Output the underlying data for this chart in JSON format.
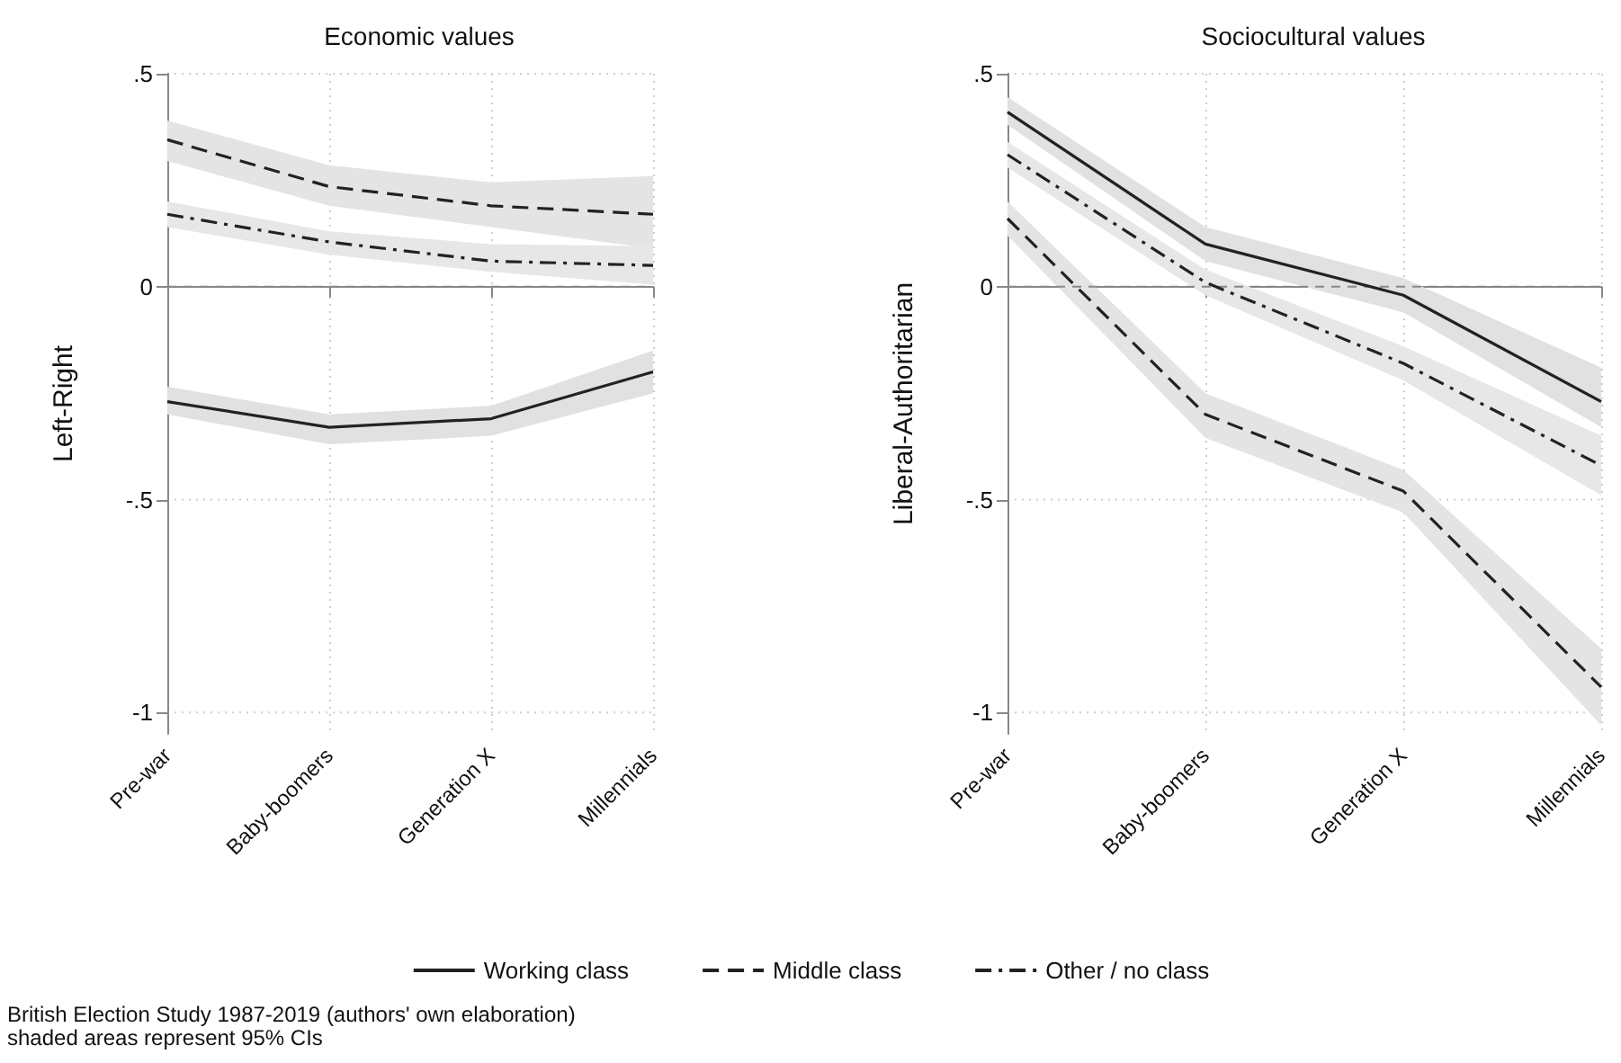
{
  "chart_data": [
    {
      "type": "line",
      "title": "Economic values",
      "ylabel": "Left-Right",
      "categories": [
        "Pre-war",
        "Baby-boomers",
        "Generation X",
        "Millennials"
      ],
      "series": [
        {
          "color": "#222222",
          "line_style": "solid",
          "values": [
            -0.27,
            -0.33,
            -0.31,
            -0.2
          ],
          "lower": [
            -0.3,
            -0.37,
            -0.35,
            -0.25
          ],
          "upper": [
            -0.235,
            -0.3,
            -0.28,
            -0.15
          ]
        },
        {
          "color": "#222222",
          "line_style": "dashed",
          "values": [
            0.345,
            0.235,
            0.19,
            0.17
          ],
          "lower": [
            0.295,
            0.19,
            0.14,
            0.09
          ],
          "upper": [
            0.39,
            0.285,
            0.245,
            0.26
          ]
        },
        {
          "color": "#222222",
          "line_style": "dashdot",
          "values": [
            0.17,
            0.105,
            0.06,
            0.05
          ],
          "lower": [
            0.14,
            0.075,
            0.035,
            0.005
          ],
          "upper": [
            0.2,
            0.13,
            0.1,
            0.095
          ]
        }
      ],
      "ylim": [
        -1.05,
        0.5
      ],
      "yticks": [
        {
          "value": -1,
          "label": "-1"
        },
        {
          "value": -0.5,
          "label": "-.5"
        },
        {
          "value": 0,
          "label": "0"
        },
        {
          "value": 0.5,
          "label": ".5"
        }
      ],
      "grid": true,
      "marker": "none",
      "ref_lines": [
        {
          "axis": "y",
          "value": 0,
          "color": "#888888",
          "line_style": "dashed"
        }
      ]
    },
    {
      "type": "line",
      "title": "Sociocultural values",
      "ylabel": "Liberal-Authoritarian",
      "categories": [
        "Pre-war",
        "Baby-boomers",
        "Generation X",
        "Millennials"
      ],
      "series": [
        {
          "name": "Working class",
          "color": "#222222",
          "line_style": "solid",
          "values": [
            0.41,
            0.1,
            -0.02,
            -0.27
          ],
          "lower": [
            0.38,
            0.06,
            -0.06,
            -0.33
          ],
          "upper": [
            0.445,
            0.14,
            0.02,
            -0.19
          ]
        },
        {
          "name": "Middle class",
          "color": "#222222",
          "line_style": "dashed",
          "values": [
            0.16,
            -0.3,
            -0.48,
            -0.94
          ],
          "lower": [
            0.12,
            -0.355,
            -0.53,
            -1.03
          ],
          "upper": [
            0.2,
            -0.25,
            -0.43,
            -0.85
          ]
        },
        {
          "name": "Other / no class",
          "color": "#222222",
          "line_style": "dashdot",
          "values": [
            0.31,
            0.01,
            -0.18,
            -0.42
          ],
          "lower": [
            0.28,
            -0.02,
            -0.22,
            -0.49
          ],
          "upper": [
            0.34,
            0.04,
            -0.14,
            -0.35
          ]
        }
      ],
      "ylim": [
        -1.05,
        0.5
      ],
      "yticks": [
        {
          "value": -1,
          "label": "-1"
        },
        {
          "value": -0.5,
          "label": "-.5"
        },
        {
          "value": 0,
          "label": "0"
        },
        {
          "value": 0.5,
          "label": ".5"
        }
      ],
      "grid": true,
      "marker": "none",
      "legend": "bottom",
      "ref_lines": [
        {
          "axis": "y",
          "value": 0,
          "color": "#888888",
          "line_style": "dashed"
        }
      ],
      "annotations": [
        "British Election Study 1987-2019 (authors' own elaboration)",
        "shaded areas represent 95% CIs"
      ]
    }
  ]
}
